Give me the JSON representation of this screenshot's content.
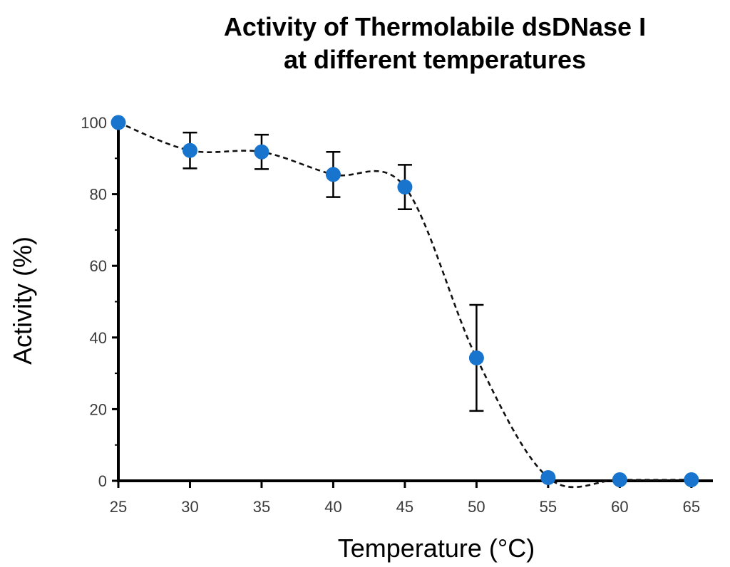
{
  "chart_data": {
    "type": "line",
    "title_line1": "Activity of Thermolabile dsDNase I",
    "title_line2": "at different temperatures",
    "xlabel": "Temperature (°C)",
    "ylabel": "Activity (%)",
    "xlim": [
      25,
      66.5
    ],
    "ylim": [
      0,
      100
    ],
    "x_ticks": [
      25,
      30,
      35,
      40,
      45,
      50,
      55,
      60,
      65
    ],
    "y_ticks": [
      0,
      20,
      40,
      60,
      80,
      100
    ],
    "points": [
      {
        "x": 25,
        "y": 100,
        "err": 0
      },
      {
        "x": 30,
        "y": 92.2,
        "err": 5
      },
      {
        "x": 35,
        "y": 91.8,
        "err": 4.8
      },
      {
        "x": 40,
        "y": 85.5,
        "err": 6.3
      },
      {
        "x": 45,
        "y": 82,
        "err": 6.2
      },
      {
        "x": 50,
        "y": 34.3,
        "err": 14.8
      },
      {
        "x": 55,
        "y": 0.9,
        "err": 0
      },
      {
        "x": 60,
        "y": 0.3,
        "err": 0
      },
      {
        "x": 65,
        "y": 0.3,
        "err": 0
      }
    ],
    "line_style": "dashed",
    "marker_color": "#1874cd",
    "grid": false
  }
}
